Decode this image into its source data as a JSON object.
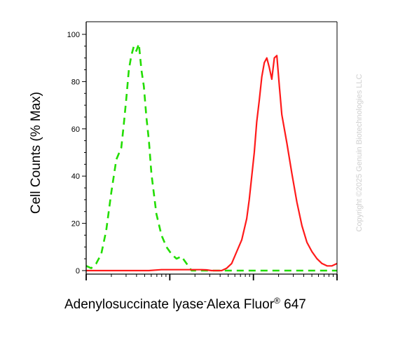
{
  "chart_data": {
    "type": "line",
    "title": "",
    "ylabel": "Cell Counts (% Max)",
    "xlabel": {
      "main": "Adenylosuccinate lyase",
      "joiner": "-",
      "dye": "Alexa Fluor",
      "mark": "®",
      "suffix": " 647"
    },
    "ylim": [
      0,
      100
    ],
    "xlim": [
      0,
      1
    ],
    "x_scale": "log-like (unlabeled)",
    "y_ticks": [
      0,
      20,
      40,
      60,
      80,
      100
    ],
    "y_tick_labels": [
      "0",
      "20",
      "40",
      "60",
      "80",
      "100"
    ],
    "grid": false,
    "legend": "none",
    "series": [
      {
        "color": "#22dd00",
        "dash": "dashed",
        "x": [
          0.0,
          0.02,
          0.04,
          0.06,
          0.08,
          0.1,
          0.12,
          0.14,
          0.15,
          0.16,
          0.17,
          0.18,
          0.19,
          0.2,
          0.21,
          0.22,
          0.23,
          0.24,
          0.25,
          0.26,
          0.28,
          0.3,
          0.32,
          0.34,
          0.36,
          0.38,
          0.4,
          0.42,
          0.44,
          0.46,
          0.48,
          0.5,
          0.52,
          0.54,
          0.56,
          0.6,
          0.65,
          0.7,
          0.75,
          0.8,
          0.85,
          0.9,
          0.95,
          1.0
        ],
        "y": [
          2,
          1,
          3,
          7,
          17,
          33,
          47,
          52,
          62,
          73,
          85,
          91,
          95,
          93,
          96,
          85,
          78,
          65,
          55,
          41,
          24,
          15,
          10,
          7,
          5,
          6,
          3,
          0,
          0,
          0,
          0,
          0,
          0,
          0,
          0,
          0,
          0,
          0,
          0,
          0,
          0,
          0,
          0,
          0
        ]
      },
      {
        "color": "#ff1a1a",
        "dash": "solid",
        "x": [
          0.0,
          0.05,
          0.1,
          0.15,
          0.2,
          0.25,
          0.3,
          0.32,
          0.35,
          0.38,
          0.4,
          0.42,
          0.44,
          0.46,
          0.48,
          0.5,
          0.52,
          0.54,
          0.56,
          0.58,
          0.6,
          0.62,
          0.64,
          0.65,
          0.66,
          0.67,
          0.68,
          0.69,
          0.7,
          0.71,
          0.72,
          0.73,
          0.74,
          0.75,
          0.76,
          0.77,
          0.78,
          0.8,
          0.82,
          0.84,
          0.86,
          0.88,
          0.9,
          0.92,
          0.94,
          0.96,
          0.98,
          1.0
        ],
        "y": [
          0,
          0,
          0,
          0,
          0,
          0,
          0.4,
          0.4,
          0.4,
          0.4,
          0.4,
          0.4,
          0.4,
          0.4,
          0.3,
          0,
          0,
          0,
          1,
          3,
          8,
          13,
          22,
          30,
          40,
          50,
          63,
          72,
          82,
          88,
          90,
          86,
          81,
          90,
          91,
          78,
          66,
          54,
          41,
          29,
          19,
          12,
          8,
          5,
          3,
          2,
          2,
          3
        ]
      }
    ]
  },
  "watermark": "Copyright ©2025 Genuin Biotechnologies LLC"
}
